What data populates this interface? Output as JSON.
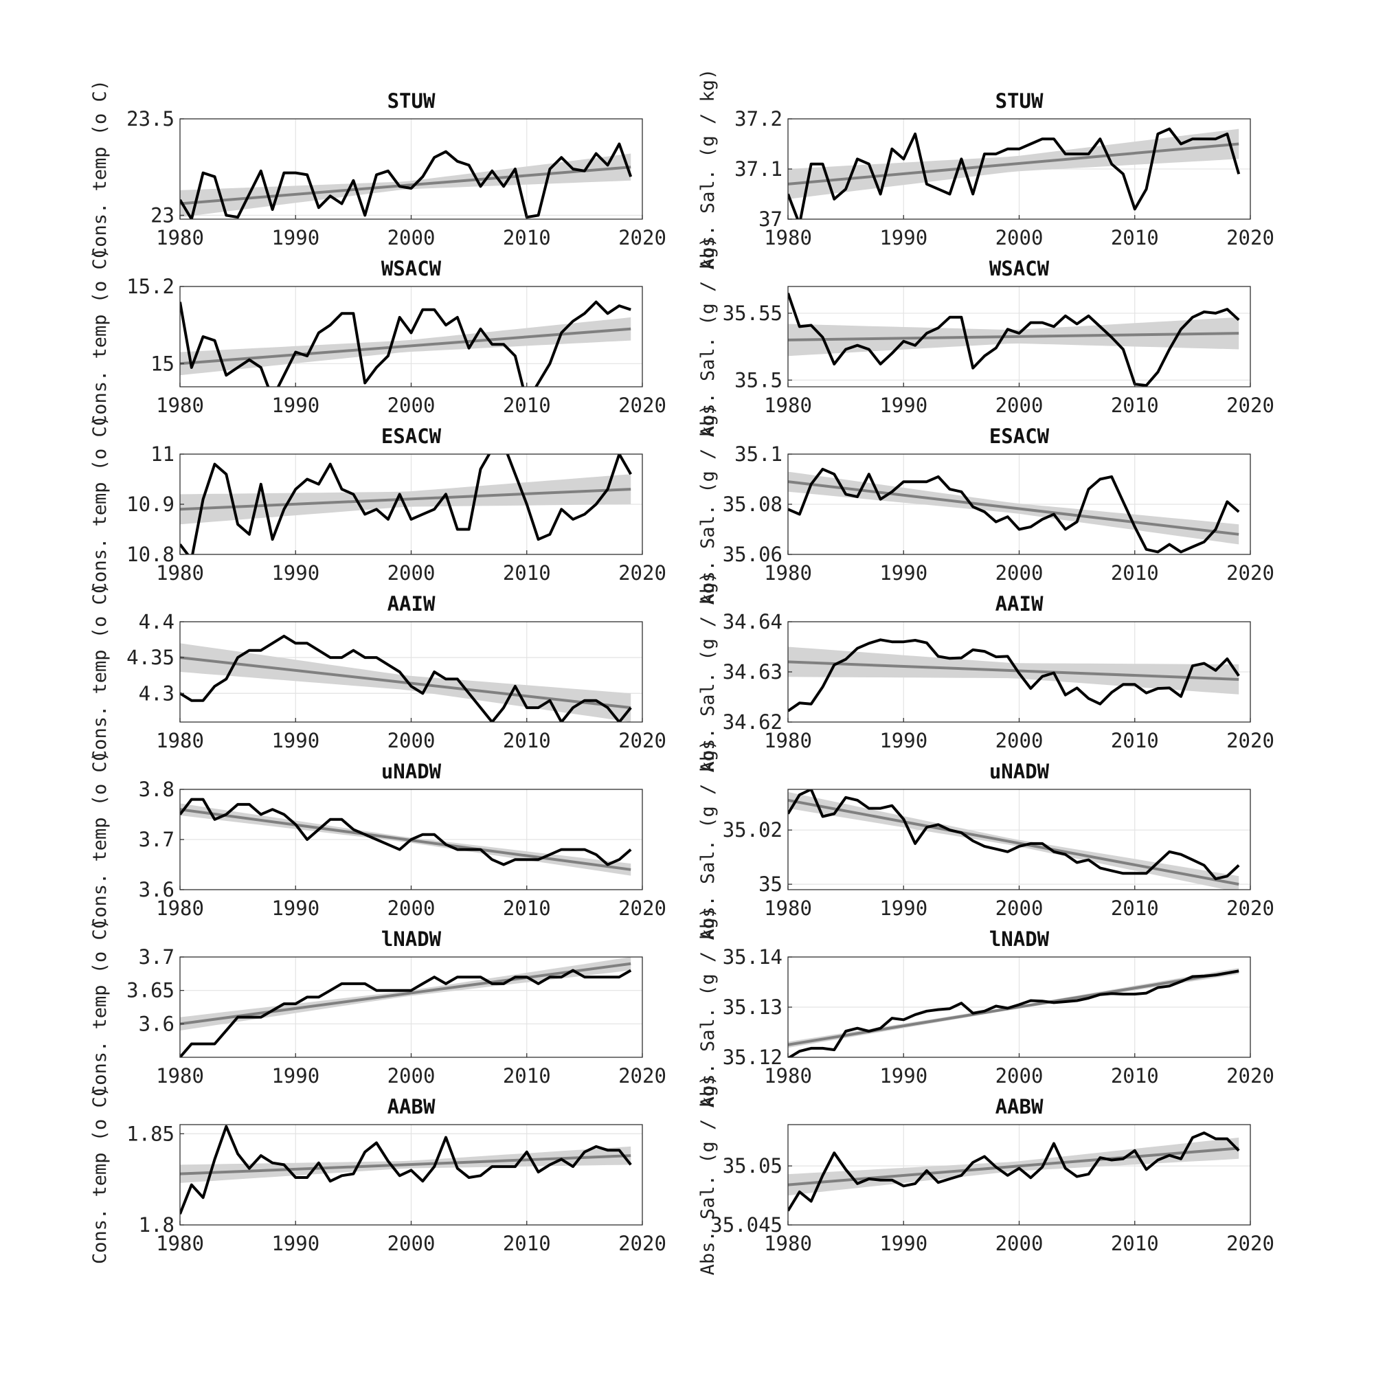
{
  "colors": {
    "series": "#000000",
    "trend": "#808080",
    "ci_band": "#d4d4d4",
    "grid": "#e3e3e3",
    "background": "#ffffff"
  },
  "chart_data": [
    {
      "type": "line",
      "title": "STUW",
      "ylabel": "Cons. temp (o C)",
      "xlim": [
        1980,
        2020
      ],
      "xticks": [
        1980,
        1990,
        2000,
        2010,
        2020
      ],
      "ylim": [
        22.98,
        23.5
      ],
      "yticks": [
        23,
        23.5
      ],
      "ytick_labels": [
        "23",
        "23.5"
      ],
      "grid": true,
      "x_start": 1980,
      "values": [
        23.08,
        22.98,
        23.22,
        23.2,
        23.0,
        22.99,
        23.11,
        23.23,
        23.03,
        23.22,
        23.22,
        23.21,
        23.04,
        23.1,
        23.06,
        23.18,
        23.0,
        23.21,
        23.23,
        23.15,
        23.14,
        23.2,
        23.3,
        23.33,
        23.28,
        23.26,
        23.15,
        23.23,
        23.15,
        23.24,
        22.99,
        23.0,
        23.24,
        23.3,
        23.24,
        23.23,
        23.32,
        23.26,
        23.37,
        23.2
      ],
      "trend": [
        23.06,
        23.25
      ],
      "ci_halfwidth": [
        0.07,
        0.02,
        0.07
      ]
    },
    {
      "type": "line",
      "title": "WSACW",
      "ylabel": "Cons. temp (o C)",
      "xlim": [
        1980,
        2020
      ],
      "xticks": [
        1980,
        1990,
        2000,
        2010,
        2020
      ],
      "ylim": [
        14.94,
        15.2
      ],
      "yticks": [
        15,
        15.2
      ],
      "ytick_labels": [
        "15",
        "15.2"
      ],
      "grid": true,
      "x_start": 1980,
      "values": [
        15.16,
        14.99,
        15.07,
        15.06,
        14.97,
        14.99,
        15.01,
        14.99,
        14.91,
        14.97,
        15.03,
        15.02,
        15.08,
        15.1,
        15.13,
        15.13,
        14.95,
        14.99,
        15.02,
        15.12,
        15.08,
        15.14,
        15.14,
        15.1,
        15.12,
        15.04,
        15.09,
        15.05,
        15.05,
        15.02,
        14.9,
        14.95,
        15.0,
        15.08,
        15.11,
        15.13,
        15.16,
        15.13,
        15.15,
        15.14
      ],
      "trend": [
        15.0,
        15.09
      ],
      "ci_halfwidth": [
        0.03,
        0.015,
        0.03
      ]
    },
    {
      "type": "line",
      "title": "ESACW",
      "ylabel": "Cons. temp (o C)",
      "xlim": [
        1980,
        2020
      ],
      "xticks": [
        1980,
        1990,
        2000,
        2010,
        2020
      ],
      "ylim": [
        10.8,
        11.0
      ],
      "yticks": [
        10.8,
        10.9,
        11
      ],
      "ytick_labels": [
        "10.8",
        "10.9",
        "11"
      ],
      "grid": true,
      "x_start": 1980,
      "values": [
        10.82,
        10.79,
        10.91,
        10.98,
        10.96,
        10.86,
        10.84,
        10.94,
        10.83,
        10.89,
        10.93,
        10.95,
        10.94,
        10.98,
        10.93,
        10.92,
        10.88,
        10.89,
        10.87,
        10.92,
        10.87,
        10.88,
        10.89,
        10.92,
        10.85,
        10.85,
        10.97,
        11.01,
        11.02,
        10.96,
        10.9,
        10.83,
        10.84,
        10.89,
        10.87,
        10.88,
        10.9,
        10.93,
        11.0,
        10.96
      ],
      "trend": [
        10.89,
        10.93
      ],
      "ci_halfwidth": [
        0.03,
        0.015,
        0.03
      ]
    },
    {
      "type": "line",
      "title": "AAIW",
      "ylabel": "Cons. temp (o C)",
      "xlim": [
        1980,
        2020
      ],
      "xticks": [
        1980,
        1990,
        2000,
        2010,
        2020
      ],
      "ylim": [
        4.26,
        4.4
      ],
      "yticks": [
        4.3,
        4.35,
        4.4
      ],
      "ytick_labels": [
        "4.3",
        "4.35",
        "4.4"
      ],
      "grid": true,
      "x_start": 1980,
      "values": [
        4.3,
        4.29,
        4.29,
        4.31,
        4.32,
        4.35,
        4.36,
        4.36,
        4.37,
        4.38,
        4.37,
        4.37,
        4.36,
        4.35,
        4.35,
        4.36,
        4.35,
        4.35,
        4.34,
        4.33,
        4.31,
        4.3,
        4.33,
        4.32,
        4.32,
        4.3,
        4.28,
        4.26,
        4.28,
        4.31,
        4.28,
        4.28,
        4.29,
        4.26,
        4.28,
        4.29,
        4.29,
        4.28,
        4.26,
        4.28
      ],
      "trend": [
        4.35,
        4.28
      ],
      "ci_halfwidth": [
        0.02,
        0.01,
        0.02
      ]
    },
    {
      "type": "line",
      "title": "uNADW",
      "ylabel": "Cons. temp (o C)",
      "xlim": [
        1980,
        2020
      ],
      "xticks": [
        1980,
        1990,
        2000,
        2010,
        2020
      ],
      "ylim": [
        3.6,
        3.8
      ],
      "yticks": [
        3.6,
        3.7,
        3.8
      ],
      "ytick_labels": [
        "3.6",
        "3.7",
        "3.8"
      ],
      "grid": true,
      "x_start": 1980,
      "values": [
        3.75,
        3.78,
        3.78,
        3.74,
        3.75,
        3.77,
        3.77,
        3.75,
        3.76,
        3.75,
        3.73,
        3.7,
        3.72,
        3.74,
        3.74,
        3.72,
        3.71,
        3.7,
        3.69,
        3.68,
        3.7,
        3.71,
        3.71,
        3.69,
        3.68,
        3.68,
        3.68,
        3.66,
        3.65,
        3.66,
        3.66,
        3.66,
        3.67,
        3.68,
        3.68,
        3.68,
        3.67,
        3.65,
        3.66,
        3.68
      ],
      "trend": [
        3.76,
        3.64
      ],
      "ci_halfwidth": [
        0.012,
        0.005,
        0.012
      ]
    },
    {
      "type": "line",
      "title": "lNADW",
      "ylabel": "Cons. temp (o C)",
      "xlim": [
        1980,
        2020
      ],
      "xticks": [
        1980,
        1990,
        2000,
        2010,
        2020
      ],
      "ylim": [
        3.55,
        3.7
      ],
      "yticks": [
        3.6,
        3.65,
        3.7
      ],
      "ytick_labels": [
        "3.6",
        "3.65",
        "3.7"
      ],
      "grid": true,
      "x_start": 1980,
      "values": [
        3.55,
        3.57,
        3.57,
        3.57,
        3.59,
        3.61,
        3.61,
        3.61,
        3.62,
        3.63,
        3.63,
        3.64,
        3.64,
        3.65,
        3.66,
        3.66,
        3.66,
        3.65,
        3.65,
        3.65,
        3.65,
        3.66,
        3.67,
        3.66,
        3.67,
        3.67,
        3.67,
        3.66,
        3.66,
        3.67,
        3.67,
        3.66,
        3.67,
        3.67,
        3.68,
        3.67,
        3.67,
        3.67,
        3.67,
        3.68
      ],
      "trend": [
        3.6,
        3.69
      ],
      "ci_halfwidth": [
        0.01,
        0.004,
        0.01
      ]
    },
    {
      "type": "line",
      "title": "AABW",
      "ylabel": "Cons. temp (o C)",
      "xlim": [
        1980,
        2020
      ],
      "xticks": [
        1980,
        1990,
        2000,
        2010,
        2020
      ],
      "ylim": [
        1.8,
        1.855
      ],
      "yticks": [
        1.8,
        1.85
      ],
      "ytick_labels": [
        "1.8",
        "1.85"
      ],
      "grid": true,
      "x_start": 1980,
      "values": [
        1.806,
        1.822,
        1.815,
        1.836,
        1.854,
        1.839,
        1.831,
        1.838,
        1.834,
        1.833,
        1.826,
        1.826,
        1.834,
        1.824,
        1.827,
        1.828,
        1.84,
        1.845,
        1.835,
        1.827,
        1.83,
        1.824,
        1.832,
        1.848,
        1.831,
        1.826,
        1.827,
        1.832,
        1.832,
        1.832,
        1.84,
        1.829,
        1.833,
        1.836,
        1.832,
        1.84,
        1.843,
        1.841,
        1.841,
        1.833
      ],
      "trend": [
        1.828,
        1.838
      ],
      "ci_halfwidth": [
        0.005,
        0.002,
        0.005
      ]
    },
    {
      "type": "line",
      "title": "STUW",
      "ylabel": "Abs. Sal. (g / kg)",
      "xlim": [
        1980,
        2020
      ],
      "xticks": [
        1980,
        1990,
        2000,
        2010,
        2020
      ],
      "ylim": [
        37.0,
        37.2
      ],
      "yticks": [
        37,
        37.1,
        37.2
      ],
      "ytick_labels": [
        "37",
        "37.1",
        "37.2"
      ],
      "grid": true,
      "x_start": 1980,
      "values": [
        37.05,
        36.99,
        37.11,
        37.11,
        37.04,
        37.06,
        37.12,
        37.11,
        37.05,
        37.14,
        37.12,
        37.17,
        37.07,
        37.06,
        37.05,
        37.12,
        37.05,
        37.13,
        37.13,
        37.14,
        37.14,
        37.15,
        37.16,
        37.16,
        37.13,
        37.13,
        37.13,
        37.16,
        37.11,
        37.09,
        37.02,
        37.06,
        37.17,
        37.18,
        37.15,
        37.16,
        37.16,
        37.16,
        37.17,
        37.09
      ],
      "trend": [
        37.07,
        37.15
      ],
      "ci_halfwidth": [
        0.03,
        0.015,
        0.03
      ]
    },
    {
      "type": "line",
      "title": "WSACW",
      "ylabel": "Abs. Sal. (g / kg)",
      "xlim": [
        1980,
        2020
      ],
      "xticks": [
        1980,
        1990,
        2000,
        2010,
        2020
      ],
      "ylim": [
        35.495,
        35.57
      ],
      "yticks": [
        35.5,
        35.55
      ],
      "ytick_labels": [
        "35.5",
        "35.55"
      ],
      "grid": true,
      "x_start": 1980,
      "values": [
        35.565,
        35.54,
        35.541,
        35.532,
        35.512,
        35.523,
        35.526,
        35.523,
        35.512,
        35.52,
        35.529,
        35.526,
        35.535,
        35.539,
        35.547,
        35.547,
        35.509,
        35.518,
        35.524,
        35.538,
        35.535,
        35.543,
        35.543,
        35.54,
        35.548,
        35.542,
        35.548,
        35.54,
        35.532,
        35.523,
        35.497,
        35.496,
        35.506,
        35.523,
        35.538,
        35.547,
        35.551,
        35.55,
        35.553,
        35.545
      ],
      "trend": [
        35.53,
        35.535
      ],
      "ci_halfwidth": [
        0.012,
        0.005,
        0.012
      ]
    },
    {
      "type": "line",
      "title": "ESACW",
      "ylabel": "Abs. Sal. (g / kg)",
      "xlim": [
        1980,
        2020
      ],
      "xticks": [
        1980,
        1990,
        2000,
        2010,
        2020
      ],
      "ylim": [
        35.06,
        35.1
      ],
      "yticks": [
        35.06,
        35.08,
        35.1
      ],
      "ytick_labels": [
        "35.06",
        "35.08",
        "35.1"
      ],
      "grid": true,
      "x_start": 1980,
      "values": [
        35.078,
        35.076,
        35.088,
        35.094,
        35.092,
        35.084,
        35.083,
        35.092,
        35.082,
        35.085,
        35.089,
        35.089,
        35.089,
        35.091,
        35.086,
        35.085,
        35.079,
        35.077,
        35.073,
        35.075,
        35.07,
        35.071,
        35.074,
        35.076,
        35.07,
        35.073,
        35.086,
        35.09,
        35.091,
        35.081,
        35.071,
        35.062,
        35.061,
        35.064,
        35.061,
        35.063,
        35.065,
        35.07,
        35.081,
        35.077
      ],
      "trend": [
        35.089,
        35.068
      ],
      "ci_halfwidth": [
        0.004,
        0.002,
        0.004
      ]
    },
    {
      "type": "line",
      "title": "AAIW",
      "ylabel": "Abs. Sal. (g / kg)",
      "xlim": [
        1980,
        2020
      ],
      "xticks": [
        1980,
        1990,
        2000,
        2010,
        2020
      ],
      "ylim": [
        34.62,
        34.64
      ],
      "yticks": [
        34.62,
        34.63,
        34.64
      ],
      "ytick_labels": [
        "34.62",
        "34.63",
        "34.64"
      ],
      "grid": true,
      "x_start": 1980,
      "values": [
        34.6222,
        34.6238,
        34.6236,
        34.627,
        34.6314,
        34.6325,
        34.6347,
        34.6357,
        34.6364,
        34.636,
        34.636,
        34.6363,
        34.6358,
        34.6331,
        34.6327,
        34.6328,
        34.6344,
        34.6341,
        34.633,
        34.6331,
        34.6297,
        34.6267,
        34.6291,
        34.6298,
        34.6254,
        34.6268,
        34.6247,
        34.6236,
        34.6259,
        34.6275,
        34.6275,
        34.6258,
        34.6267,
        34.6268,
        34.6251,
        34.6312,
        34.6317,
        34.6303,
        34.6326,
        34.6292
      ],
      "trend": [
        34.632,
        34.6285
      ],
      "ci_halfwidth": [
        0.003,
        0.0015,
        0.003
      ]
    },
    {
      "type": "line",
      "title": "uNADW",
      "ylabel": "Abs. Sal. (g / kg)",
      "xlim": [
        1980,
        2020
      ],
      "xticks": [
        1980,
        1990,
        2000,
        2010,
        2020
      ],
      "ylim": [
        34.998,
        35.035
      ],
      "yticks": [
        35,
        35.02
      ],
      "ytick_labels": [
        "35",
        "35.02"
      ],
      "grid": true,
      "x_start": 1980,
      "values": [
        35.026,
        35.033,
        35.035,
        35.025,
        35.026,
        35.032,
        35.031,
        35.028,
        35.028,
        35.029,
        35.024,
        35.015,
        35.021,
        35.022,
        35.02,
        35.019,
        35.016,
        35.014,
        35.013,
        35.012,
        35.014,
        35.015,
        35.015,
        35.012,
        35.011,
        35.008,
        35.009,
        35.006,
        35.005,
        35.004,
        35.004,
        35.004,
        35.008,
        35.012,
        35.011,
        35.009,
        35.007,
        35.002,
        35.003,
        35.007
      ],
      "trend": [
        35.031,
        35.0
      ],
      "ci_halfwidth": [
        0.003,
        0.0012,
        0.003
      ]
    },
    {
      "type": "line",
      "title": "lNADW",
      "ylabel": "Abs. Sal. (g / kg)",
      "xlim": [
        1980,
        2020
      ],
      "xticks": [
        1980,
        1990,
        2000,
        2010,
        2020
      ],
      "ylim": [
        35.12,
        35.14
      ],
      "yticks": [
        35.12,
        35.13,
        35.14
      ],
      "ytick_labels": [
        "35.12",
        "35.13",
        "35.14"
      ],
      "grid": true,
      "x_start": 1980,
      "values": [
        35.1198,
        35.1212,
        35.1218,
        35.1218,
        35.1215,
        35.1252,
        35.1258,
        35.1252,
        35.1258,
        35.1278,
        35.1275,
        35.1285,
        35.1292,
        35.1295,
        35.1297,
        35.1308,
        35.1288,
        35.1292,
        35.1302,
        35.1298,
        35.1305,
        35.1313,
        35.1312,
        35.1309,
        35.1311,
        35.1313,
        35.1318,
        35.1325,
        35.1327,
        35.1326,
        35.1326,
        35.1328,
        35.1339,
        35.1342,
        35.1351,
        35.1361,
        35.1362,
        35.1364,
        35.1368,
        35.1372
      ],
      "trend": [
        35.1225,
        35.1372
      ],
      "ci_halfwidth": [
        0.0006,
        0.0003,
        0.0006
      ]
    },
    {
      "type": "line",
      "title": "AABW",
      "ylabel": "Abs. Sal. (g / kg)",
      "xlim": [
        1980,
        2020
      ],
      "xticks": [
        1980,
        1990,
        2000,
        2010,
        2020
      ],
      "ylim": [
        35.045,
        35.0535
      ],
      "yticks": [
        35.045,
        35.05
      ],
      "ytick_labels": [
        "35.045",
        "35.05"
      ],
      "grid": true,
      "x_start": 1980,
      "values": [
        35.0462,
        35.0478,
        35.047,
        35.0492,
        35.0511,
        35.0497,
        35.0485,
        35.0489,
        35.0488,
        35.0488,
        35.0483,
        35.0485,
        35.0496,
        35.0486,
        35.0489,
        35.0492,
        35.0503,
        35.0508,
        35.0499,
        35.0492,
        35.0498,
        35.049,
        35.0499,
        35.0519,
        35.0498,
        35.0491,
        35.0493,
        35.0507,
        35.0505,
        35.0506,
        35.0513,
        35.0497,
        35.0505,
        35.0509,
        35.0506,
        35.0524,
        35.0528,
        35.0523,
        35.0523,
        35.0513
      ],
      "trend": [
        35.0484,
        35.0515
      ],
      "ci_halfwidth": [
        0.0009,
        0.0004,
        0.0009
      ]
    }
  ]
}
